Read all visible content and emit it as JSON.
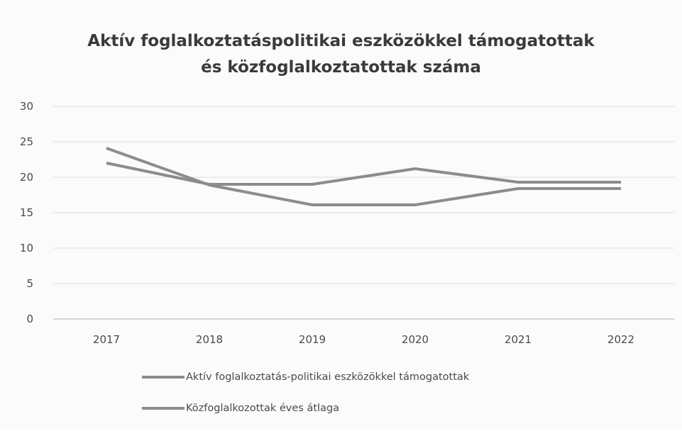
{
  "chart_data": {
    "type": "line",
    "title_lines": [
      "Aktív foglalkoztatáspolitikai eszközökkel támogatottak",
      "és közfoglalkoztatottak száma"
    ],
    "xlabel": "",
    "ylabel": "",
    "categories": [
      "2017",
      "2018",
      "2019",
      "2020",
      "2021",
      "2022"
    ],
    "ylim": [
      0,
      30
    ],
    "yticks": [
      0,
      5,
      10,
      15,
      20,
      25,
      30
    ],
    "grid": true,
    "legend_position": "bottom",
    "series": [
      {
        "name": "Aktív foglalkoztatás-politikai eszközökkel támogatottak",
        "values": [
          22,
          19,
          19,
          21.2,
          19.3,
          19.3
        ],
        "color": "#8c8c8c"
      },
      {
        "name": "Közfoglalkozottak éves átlaga",
        "values": [
          24.1,
          18.9,
          16.1,
          16.1,
          18.4,
          18.4
        ],
        "color": "#8c8c8c"
      }
    ]
  }
}
